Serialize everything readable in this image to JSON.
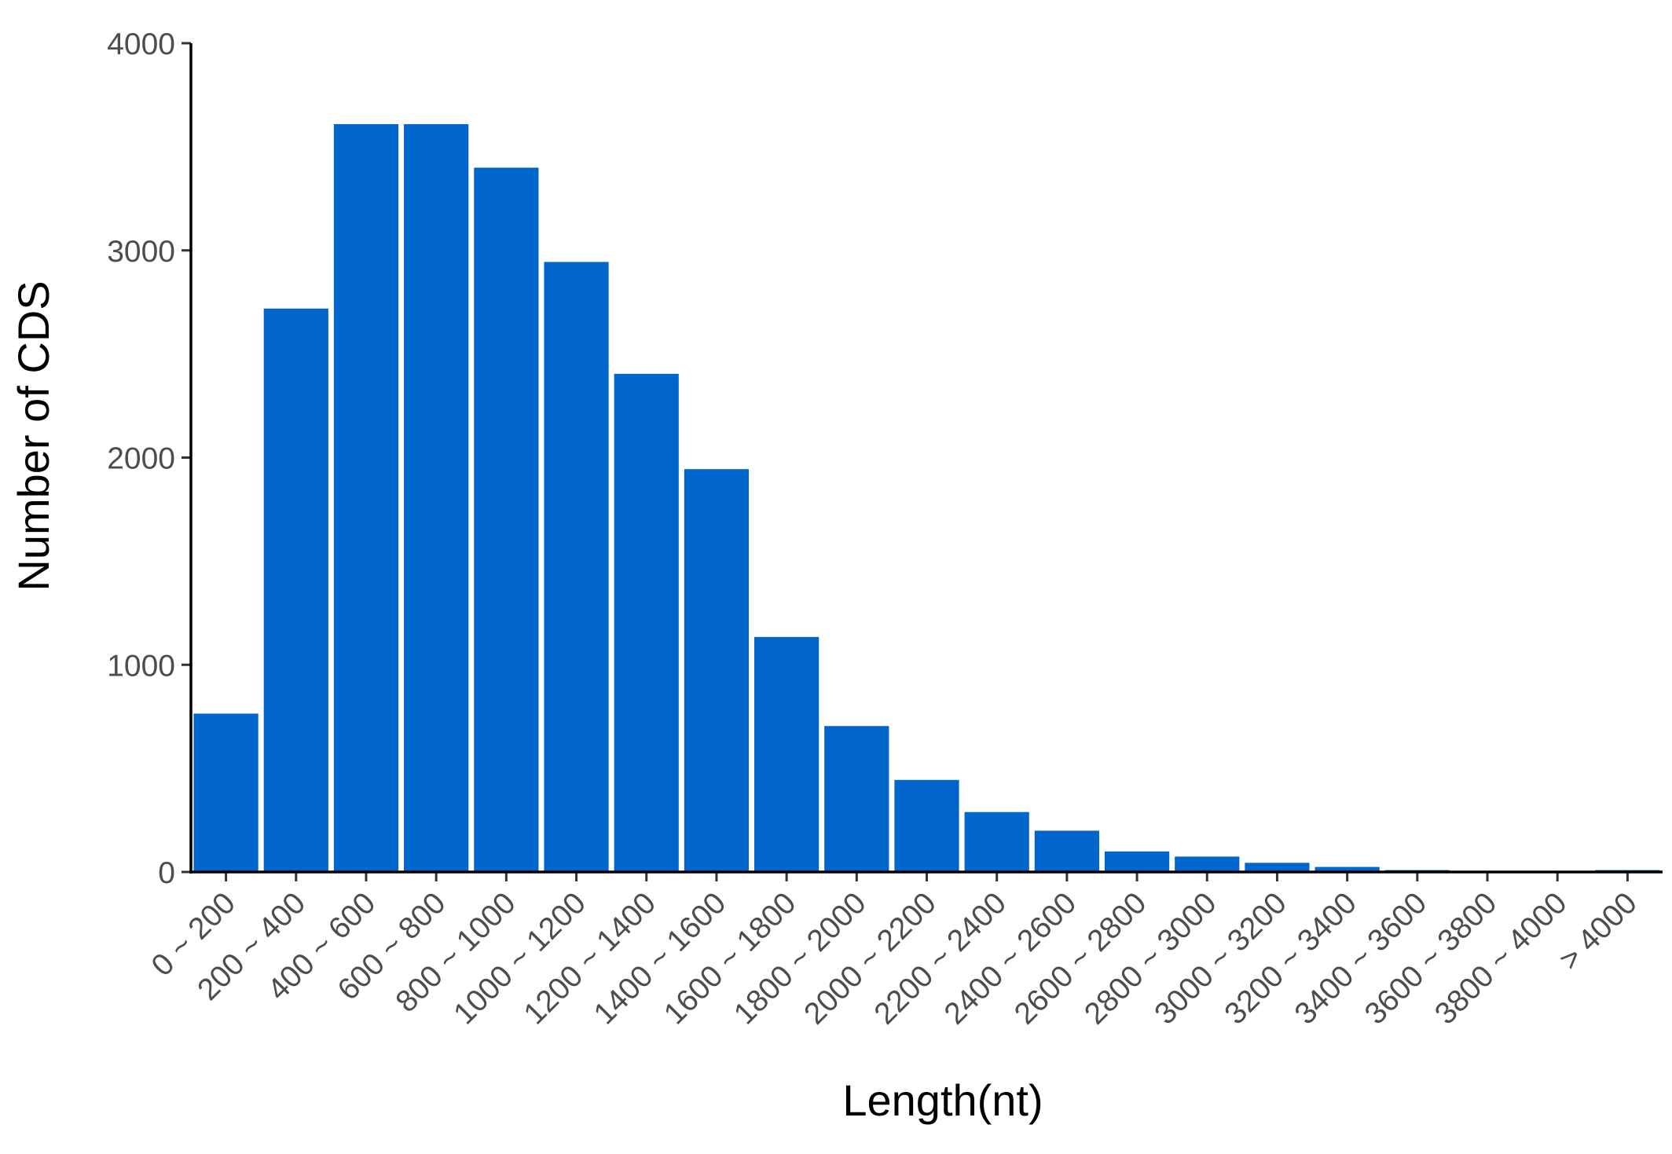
{
  "chart_data": {
    "type": "bar",
    "xlabel": "Length(nt)",
    "ylabel": "Number of CDS",
    "ylim": [
      0,
      4000
    ],
    "yticks": [
      "0",
      "1000",
      "2000",
      "3000",
      "4000"
    ],
    "grid": false,
    "bar_color": "#0066CC",
    "categories": [
      "0 ~ 200",
      "200 ~ 400",
      "400 ~ 600",
      "600 ~ 800",
      "800 ~ 1000",
      "1000 ~ 1200",
      "1200 ~ 1400",
      "1400 ~ 1600",
      "1600 ~ 1800",
      "1800 ~ 2000",
      "2000 ~ 2200",
      "2200 ~ 2400",
      "2400 ~ 2600",
      "2600 ~ 2800",
      "2800 ~ 3000",
      "3000 ~ 3200",
      "3200 ~ 3400",
      "3400 ~ 3600",
      "3600 ~ 3800",
      "3800 ~ 4000",
      "> 4000"
    ],
    "values": [
      770,
      2725,
      3615,
      3615,
      3405,
      2950,
      2410,
      1950,
      1140,
      710,
      450,
      295,
      205,
      105,
      80,
      50,
      30,
      15,
      10,
      8,
      15
    ]
  }
}
